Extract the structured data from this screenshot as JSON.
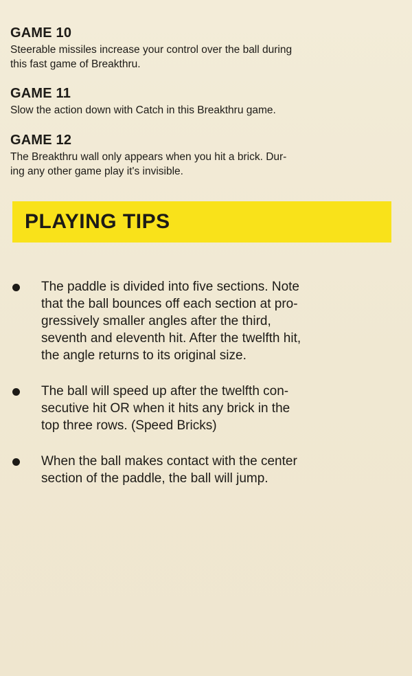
{
  "games": [
    {
      "title": "GAME 10",
      "text_lines": [
        "Steerable missiles increase your control over the ball during",
        "this fast game of Breakthru."
      ]
    },
    {
      "title": "GAME 11",
      "text_lines": [
        "Slow the action down with Catch in this Breakthru game."
      ]
    },
    {
      "title": "GAME 12",
      "text_lines": [
        "The Breakthru wall only appears when you hit a brick.  Dur-",
        "ing any other game play it's invisible."
      ]
    }
  ],
  "section": {
    "title": "PLAYING TIPS",
    "banner_color": "#f9e21a"
  },
  "tips": [
    {
      "lines": [
        "The paddle is divided into five sections.  Note",
        "that the ball bounces off each section at pro-",
        "gressively smaller angles after the third,",
        "seventh and eleventh hit.  After the twelfth hit,",
        "the angle returns to its original size."
      ]
    },
    {
      "lines": [
        "The ball will speed up after the twelfth con-",
        "secutive hit OR when it hits any brick in the",
        "top three rows. (Speed Bricks)"
      ]
    },
    {
      "lines": [
        "When the ball makes contact with the center",
        "section of the paddle, the ball will jump."
      ]
    }
  ]
}
